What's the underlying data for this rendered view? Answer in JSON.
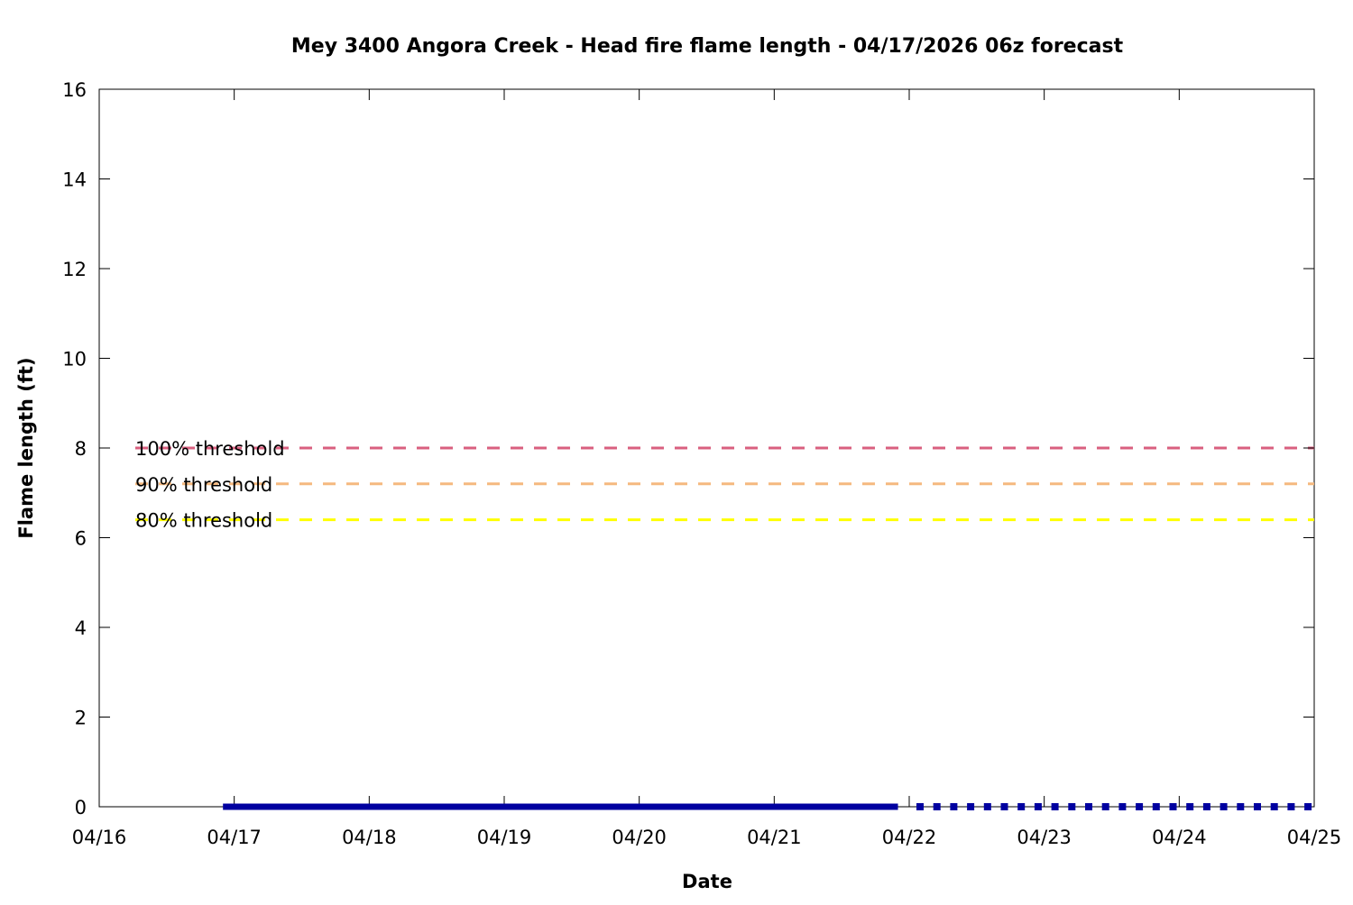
{
  "chart_data": {
    "type": "line",
    "title": "Mey 3400 Angora Creek - Head fire flame length - 04/17/2026 06z forecast",
    "xlabel": "Date",
    "ylabel": "Flame length (ft)",
    "xlim": [
      "04/16",
      "04/25"
    ],
    "ylim": [
      0,
      16
    ],
    "grid": false,
    "x_ticks": [
      "04/16",
      "04/17",
      "04/18",
      "04/19",
      "04/20",
      "04/21",
      "04/22",
      "04/23",
      "04/24",
      "04/25"
    ],
    "y_ticks": [
      0,
      2,
      4,
      6,
      8,
      10,
      12,
      14,
      16
    ],
    "series": [
      {
        "style": "solid",
        "color": "#0000a0",
        "x": [
          "04/16 22:00",
          "04/21 22:00"
        ],
        "values": [
          0,
          0
        ]
      },
      {
        "style": "dotted",
        "color": "#0000a0",
        "x": [
          "04/22 00:00",
          "04/25 00:00"
        ],
        "values": [
          0,
          0
        ]
      }
    ],
    "thresholds": [
      {
        "name": "100% threshold",
        "value": 8.0,
        "color": "#d95f7f"
      },
      {
        "name": "90% threshold",
        "value": 7.2,
        "color": "#f5b97f"
      },
      {
        "name": "80% threshold",
        "value": 6.4,
        "color": "#ffff00"
      }
    ]
  }
}
